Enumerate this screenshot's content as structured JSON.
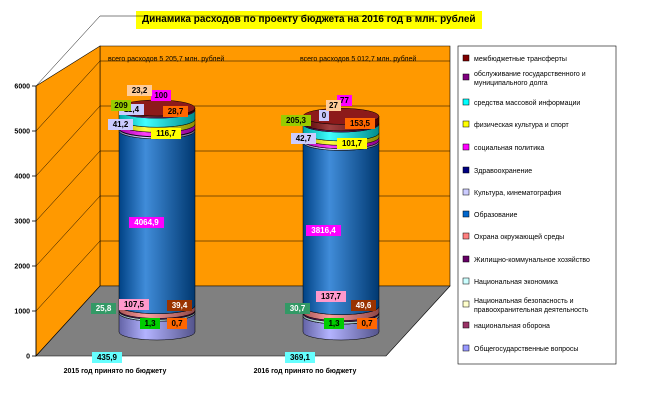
{
  "chart_data": {
    "type": "bar",
    "title": "Динамика расходов по проекту бюджета на 2016 год в млн. рублей",
    "categories": [
      "2015 год принято по бюджету",
      "2016 год принято по бюджету"
    ],
    "totals": [
      "всего расходов 5 205,7 млн. рублей",
      "всего расходов 5 012,7 млн. рублей"
    ],
    "ylim": [
      0,
      6000
    ],
    "yticks": [
      "0",
      "1000",
      "2000",
      "3000",
      "4000",
      "5000",
      "6000"
    ],
    "legend_position": "right",
    "stacked": true,
    "series": [
      {
        "name": "Общегосударственные вопросы",
        "color": "#9999ff",
        "values": [
          435.9,
          369.1
        ],
        "labels": [
          "435,9",
          "369,1"
        ],
        "label_bg": "#66ffff"
      },
      {
        "name": "национальная оборона",
        "color": "#993366",
        "values": [
          0.7,
          0.7
        ],
        "labels": [
          "0,7",
          "0,7"
        ],
        "label_bg": "#ff6600"
      },
      {
        "name": "Национальная безопасность и правоохранительная деятельность",
        "color": "#ffffcc",
        "values": [
          1.3,
          1.3
        ],
        "labels": [
          "1,3",
          "1,3"
        ],
        "label_bg": "#00cc00"
      },
      {
        "name": "Национальная экономика",
        "color": "#ccffff",
        "values": [
          39.4,
          49.6
        ],
        "labels": [
          "39,4",
          "49,6"
        ],
        "label_bg": "#993300"
      },
      {
        "name": "Жилищно-коммунальное хозяйство",
        "color": "#660066",
        "values": [
          25.8,
          30.7
        ],
        "labels": [
          "25,8",
          "30,7"
        ],
        "label_bg": "#339966"
      },
      {
        "name": "Охрана окружающей среды",
        "color": "#ff8080",
        "values": [
          107.5,
          137.7
        ],
        "labels": [
          "107,5",
          "137,7"
        ],
        "label_bg": "#ff99cc"
      },
      {
        "name": "Образование",
        "color": "#0066cc",
        "values": [
          4064.9,
          3816.4
        ],
        "labels": [
          "4064,9",
          "3816,4"
        ],
        "label_bg": "#ff00ff"
      },
      {
        "name": "Культура, кинематография",
        "color": "#ccccff",
        "values": [
          41.2,
          42.7
        ],
        "labels": [
          "41,2",
          "42,7"
        ],
        "label_bg": "#ccccff"
      },
      {
        "name": "Здравоохранение",
        "color": "#000080",
        "values": [
          11.4,
          0
        ],
        "labels": [
          "11,4",
          "0"
        ],
        "label_bg": "#ccccff"
      },
      {
        "name": "социальная политика",
        "color": "#ff00ff",
        "values": [
          100,
          77
        ],
        "labels": [
          "100",
          "77"
        ],
        "label_bg": "#ff00ff"
      },
      {
        "name": "физическая культура и спорт",
        "color": "#ffff00",
        "values": [
          116.7,
          101.7
        ],
        "labels": [
          "116,7",
          "101,7"
        ],
        "label_bg": "#ffff00"
      },
      {
        "name": "средства массовой информации",
        "color": "#00ffff",
        "values": [
          209,
          205.3
        ],
        "labels": [
          "209",
          "205,3"
        ],
        "label_bg": "#99cc00"
      },
      {
        "name": "обслуживание государственного и муниципального долга",
        "color": "#800080",
        "values": [
          23.2,
          27
        ],
        "labels": [
          "23,2",
          "27"
        ],
        "label_bg": "#ffcc99"
      },
      {
        "name": "межбюджетные трансферты",
        "color": "#800000",
        "values": [
          28.7,
          153.5
        ],
        "labels": [
          "28,7",
          "153,5"
        ],
        "label_bg": "#ff6600"
      }
    ]
  }
}
